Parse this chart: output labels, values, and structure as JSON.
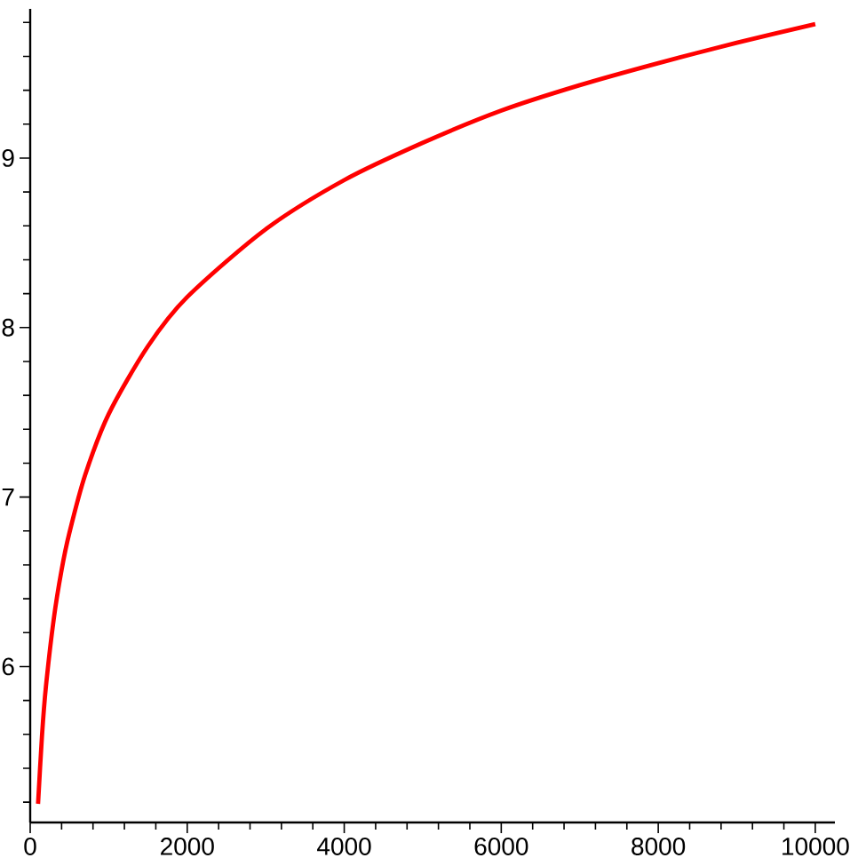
{
  "chart_data": {
    "type": "line",
    "x": [
      100,
      150,
      200,
      300,
      400,
      500,
      700,
      1000,
      1500,
      2000,
      3000,
      4000,
      5000,
      6000,
      7000,
      8000,
      9000,
      10000
    ],
    "values": [
      5.19,
      5.59,
      5.88,
      6.28,
      6.57,
      6.79,
      7.13,
      7.49,
      7.89,
      8.18,
      8.58,
      8.87,
      9.09,
      9.28,
      9.43,
      9.56,
      9.68,
      9.79
    ],
    "color": "#ff0000",
    "xlim": [
      0,
      10250
    ],
    "ylim": [
      5.08,
      9.88
    ],
    "xticks": [
      0,
      {
        "value": 400,
        "label": null
      },
      {
        "value": 800,
        "label": null
      },
      {
        "value": 1200,
        "label": null
      },
      {
        "value": 1600,
        "label": null
      },
      2000,
      {
        "value": 2400,
        "label": null
      },
      {
        "value": 2800,
        "label": null
      },
      {
        "value": 3200,
        "label": null
      },
      {
        "value": 3600,
        "label": null
      },
      4000,
      {
        "value": 4400,
        "label": null
      },
      {
        "value": 4800,
        "label": null
      },
      {
        "value": 5200,
        "label": null
      },
      {
        "value": 5600,
        "label": null
      },
      6000,
      {
        "value": 6400,
        "label": null
      },
      {
        "value": 6800,
        "label": null
      },
      {
        "value": 7200,
        "label": null
      },
      {
        "value": 7600,
        "label": null
      },
      8000,
      {
        "value": 8400,
        "label": null
      },
      {
        "value": 8800,
        "label": null
      },
      {
        "value": 9200,
        "label": null
      },
      {
        "value": 9600,
        "label": null
      },
      10000
    ],
    "yticks": [
      {
        "value": 5.2,
        "label": null
      },
      {
        "value": 5.4,
        "label": null
      },
      {
        "value": 5.6,
        "label": null
      },
      {
        "value": 5.8,
        "label": null
      },
      6,
      {
        "value": 6.2,
        "label": null
      },
      {
        "value": 6.4,
        "label": null
      },
      {
        "value": 6.6,
        "label": null
      },
      {
        "value": 6.8,
        "label": null
      },
      7,
      {
        "value": 7.2,
        "label": null
      },
      {
        "value": 7.4,
        "label": null
      },
      {
        "value": 7.6,
        "label": null
      },
      {
        "value": 7.8,
        "label": null
      },
      8,
      {
        "value": 8.2,
        "label": null
      },
      {
        "value": 8.4,
        "label": null
      },
      {
        "value": 8.6,
        "label": null
      },
      {
        "value": 8.8,
        "label": null
      },
      9,
      {
        "value": 9.2,
        "label": null
      },
      {
        "value": 9.4,
        "label": null
      },
      {
        "value": 9.6,
        "label": null
      },
      {
        "value": 9.8,
        "label": null
      }
    ],
    "grid": false
  }
}
